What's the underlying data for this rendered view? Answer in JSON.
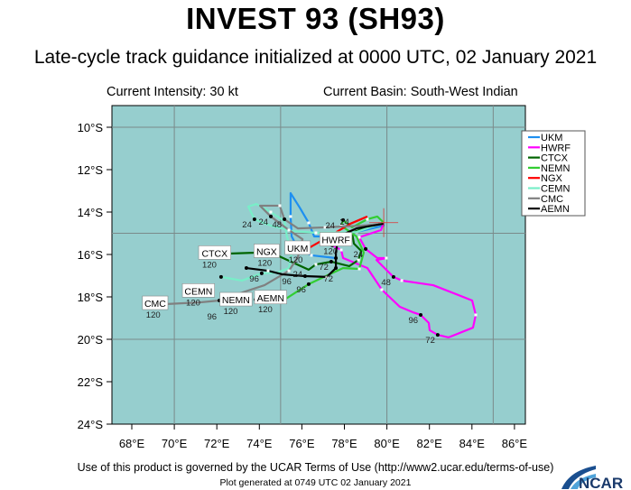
{
  "header": {
    "title": "INVEST 93 (SH93)",
    "subtitle": "Late-cycle track guidance initialized at 0000 UTC, 02 January 2021",
    "current_intensity": "Current Intensity: 30 kt",
    "current_basin": "Current Basin: South-West Indian"
  },
  "footer": {
    "terms": "Use of this product is governed by the UCAR Terms of Use (http://www2.ucar.edu/terms-of-use)",
    "generated": "Plot generated at 0749 UTC   02 January 2021",
    "logo_text": "NCAR"
  },
  "map": {
    "background_color": "#96cece",
    "lon_range": [
      67.25,
      86.5
    ],
    "lat_range": [
      -24,
      -9
    ],
    "lon_ticks": [
      {
        "value": 68,
        "label": "68°E"
      },
      {
        "value": 70,
        "label": "70°E"
      },
      {
        "value": 72,
        "label": "72°E"
      },
      {
        "value": 74,
        "label": "74°E"
      },
      {
        "value": 76,
        "label": "76°E"
      },
      {
        "value": 78,
        "label": "78°E"
      },
      {
        "value": 80,
        "label": "80°E"
      },
      {
        "value": 82,
        "label": "82°E"
      },
      {
        "value": 84,
        "label": "84°E"
      },
      {
        "value": 86,
        "label": "86°E"
      }
    ],
    "lat_ticks": [
      {
        "value": -10,
        "label": "10°S"
      },
      {
        "value": -12,
        "label": "12°S"
      },
      {
        "value": -14,
        "label": "14°S"
      },
      {
        "value": -16,
        "label": "16°S"
      },
      {
        "value": -18,
        "label": "18°S"
      },
      {
        "value": -20,
        "label": "20°S"
      },
      {
        "value": -22,
        "label": "22°S"
      },
      {
        "value": -24,
        "label": "24°S"
      }
    ],
    "grid_lons": [
      70,
      75,
      80,
      85
    ],
    "grid_lats": [
      -10,
      -15,
      -20
    ],
    "initial_position": {
      "lon": 79.85,
      "lat": -14.5
    }
  },
  "legend": {
    "placement": "top-right",
    "items": [
      "UKM",
      "HWRF",
      "CTCX",
      "NEMN",
      "NGX",
      "CEMN",
      "CMC",
      "AEMN"
    ]
  },
  "tracks": [
    {
      "name": "UKM",
      "color": "#1e8ff0",
      "end_hour": "120",
      "points": [
        [
          79.85,
          -14.5
        ],
        [
          79.85,
          -14.64
        ],
        [
          78.57,
          -14.94
        ],
        [
          77.3,
          -15.15
        ],
        [
          76.58,
          -15.15
        ],
        [
          76.32,
          -14.51
        ],
        [
          75.9,
          -13.79
        ],
        [
          75.47,
          -13.11
        ],
        [
          75.47,
          -14.21
        ],
        [
          75.52,
          -15.15
        ],
        [
          75.81,
          -15.7
        ],
        [
          76.45,
          -16.04
        ],
        [
          77.6,
          -16.17
        ]
      ],
      "label_at": [
        75.8,
        -15.7
      ],
      "hour_marks": []
    },
    {
      "name": "HWRF",
      "color": "#ff00ff",
      "end_hour": "120",
      "points": [
        [
          79.85,
          -14.51
        ],
        [
          79.72,
          -14.85
        ],
        [
          78.7,
          -15.19
        ],
        [
          79.0,
          -15.74
        ],
        [
          79.55,
          -16.17
        ],
        [
          79.97,
          -16.17
        ],
        [
          79.51,
          -16.26
        ],
        [
          80.31,
          -17.06
        ],
        [
          80.7,
          -17.23
        ],
        [
          82.18,
          -17.45
        ],
        [
          84.01,
          -18.17
        ],
        [
          84.18,
          -18.85
        ],
        [
          84.05,
          -19.45
        ],
        [
          82.9,
          -19.91
        ],
        [
          82.39,
          -19.79
        ],
        [
          82.01,
          -19.57
        ],
        [
          81.97,
          -19.23
        ],
        [
          81.59,
          -18.85
        ],
        [
          81.21,
          -18.72
        ],
        [
          80.61,
          -18.47
        ],
        [
          79.76,
          -17.66
        ],
        [
          79.08,
          -16.64
        ],
        [
          77.94,
          -16.17
        ],
        [
          77.85,
          -15.79
        ],
        [
          77.43,
          -15.57
        ]
      ],
      "label_at": [
        77.6,
        -15.3
      ],
      "hour_marks": [
        {
          "hour": "24",
          "lon": 79.0,
          "lat": -15.74
        },
        {
          "hour": "48",
          "lon": 80.31,
          "lat": -17.06
        },
        {
          "hour": "72",
          "lon": 82.39,
          "lat": -19.79
        },
        {
          "hour": "96",
          "lon": 81.59,
          "lat": -18.85
        }
      ]
    },
    {
      "name": "CTCX",
      "color": "#006400",
      "end_hour": "120",
      "points": [
        [
          79.85,
          -14.5
        ],
        [
          78.87,
          -14.77
        ],
        [
          78.36,
          -14.98
        ],
        [
          78.45,
          -15.49
        ],
        [
          78.79,
          -15.83
        ],
        [
          78.66,
          -16.26
        ],
        [
          78.23,
          -16.55
        ],
        [
          77.38,
          -16.34
        ],
        [
          76.66,
          -16.47
        ],
        [
          76.32,
          -16.72
        ],
        [
          75.69,
          -16.43
        ],
        [
          74.84,
          -16.04
        ],
        [
          73.99,
          -15.91
        ],
        [
          72.54,
          -15.96
        ]
      ],
      "label_at": [
        71.9,
        -15.93
      ],
      "hour_marks": [
        {
          "hour": "24",
          "lon": 78.36,
          "lat": -14.98
        },
        {
          "hour": "72",
          "lon": 77.38,
          "lat": -16.34
        }
      ]
    },
    {
      "name": "NEMN",
      "color": "#32cd32",
      "end_hour": "120",
      "points": [
        [
          79.85,
          -14.5
        ],
        [
          79.55,
          -14.21
        ],
        [
          79.08,
          -14.34
        ],
        [
          78.36,
          -14.72
        ],
        [
          77.94,
          -14.38
        ],
        [
          77.85,
          -14.64
        ],
        [
          78.57,
          -15.15
        ],
        [
          78.91,
          -15.91
        ],
        [
          78.7,
          -16.68
        ],
        [
          77.94,
          -16.64
        ],
        [
          77.21,
          -16.98
        ],
        [
          76.32,
          -17.4
        ],
        [
          75.18,
          -18.13
        ],
        [
          73.82,
          -18.13
        ]
      ],
      "label_at": [
        72.9,
        -18.13
      ],
      "hour_marks": [
        {
          "hour": "24",
          "lon": 77.94,
          "lat": -14.38
        },
        {
          "hour": "96",
          "lon": 76.32,
          "lat": -17.4
        }
      ]
    },
    {
      "name": "NGX",
      "color": "#ff0000",
      "end_hour": "120",
      "points": [
        [
          79.08,
          -14.21
        ],
        [
          78.28,
          -14.55
        ],
        [
          77.43,
          -15.06
        ],
        [
          76.32,
          -15.7
        ],
        [
          75.39,
          -15.91
        ]
      ],
      "label_at": [
        74.6,
        -15.85
      ],
      "hour_marks": [
        {
          "hour": "24",
          "lon": 75.39,
          "lat": -15.91
        }
      ]
    },
    {
      "name": "CEMN",
      "color": "#78eec8",
      "end_hour": "120",
      "points": [
        [
          79.85,
          -14.5
        ],
        [
          78.57,
          -14.94
        ],
        [
          76.66,
          -14.98
        ],
        [
          75.52,
          -14.89
        ],
        [
          74.54,
          -14.64
        ],
        [
          73.77,
          -14.34
        ],
        [
          73.48,
          -13.74
        ],
        [
          73.86,
          -13.62
        ],
        [
          74.54,
          -14.0
        ],
        [
          75.18,
          -14.43
        ],
        [
          75.3,
          -15.15
        ],
        [
          75.52,
          -15.91
        ],
        [
          75.39,
          -16.64
        ],
        [
          74.84,
          -16.85
        ],
        [
          74.11,
          -16.89
        ],
        [
          73.18,
          -17.23
        ],
        [
          72.2,
          -17.06
        ]
      ],
      "label_at": [
        71.9,
        -16.95
      ],
      "hour_marks": [
        {
          "hour": "24",
          "lon": 73.77,
          "lat": -14.34
        },
        {
          "hour": "96",
          "lon": 74.11,
          "lat": -16.89
        }
      ]
    },
    {
      "name": "CMC",
      "color": "#808080",
      "end_hour": "120",
      "points": [
        [
          79.85,
          -14.55
        ],
        [
          78.79,
          -14.64
        ],
        [
          77.09,
          -14.72
        ],
        [
          75.81,
          -14.77
        ],
        [
          75.18,
          -14.34
        ],
        [
          74.96,
          -13.7
        ],
        [
          74.03,
          -13.7
        ],
        [
          74.54,
          -14.21
        ],
        [
          75.39,
          -14.85
        ],
        [
          76.03,
          -15.28
        ],
        [
          75.81,
          -16.13
        ],
        [
          75.39,
          -16.77
        ],
        [
          74.24,
          -17.45
        ],
        [
          72.84,
          -17.91
        ],
        [
          72.12,
          -18.17
        ],
        [
          71.18,
          -18.26
        ],
        [
          69.57,
          -18.34
        ]
      ],
      "label_at": [
        69.1,
        -18.3
      ],
      "hour_marks": [
        {
          "hour": "24",
          "lon": 74.54,
          "lat": -14.21
        },
        {
          "hour": "48",
          "lon": 75.18,
          "lat": -14.34
        },
        {
          "hour": "96",
          "lon": 72.12,
          "lat": -18.17
        }
      ]
    },
    {
      "name": "AEMN",
      "color": "#000000",
      "end_hour": "120",
      "points": [
        [
          79.85,
          -14.55
        ],
        [
          78.57,
          -14.77
        ],
        [
          77.72,
          -15.15
        ],
        [
          77.6,
          -15.91
        ],
        [
          77.6,
          -16.64
        ],
        [
          77.17,
          -17.06
        ],
        [
          76.15,
          -17.02
        ],
        [
          75.09,
          -16.94
        ],
        [
          74.41,
          -16.77
        ],
        [
          73.39,
          -16.64
        ]
      ],
      "label_at": [
        73.0,
        -16.5
      ],
      "hour_marks": [
        {
          "hour": "72",
          "lon": 77.6,
          "lat": -16.64
        },
        {
          "hour": "96",
          "lon": 76.15,
          "lat": -17.02
        }
      ]
    }
  ]
}
